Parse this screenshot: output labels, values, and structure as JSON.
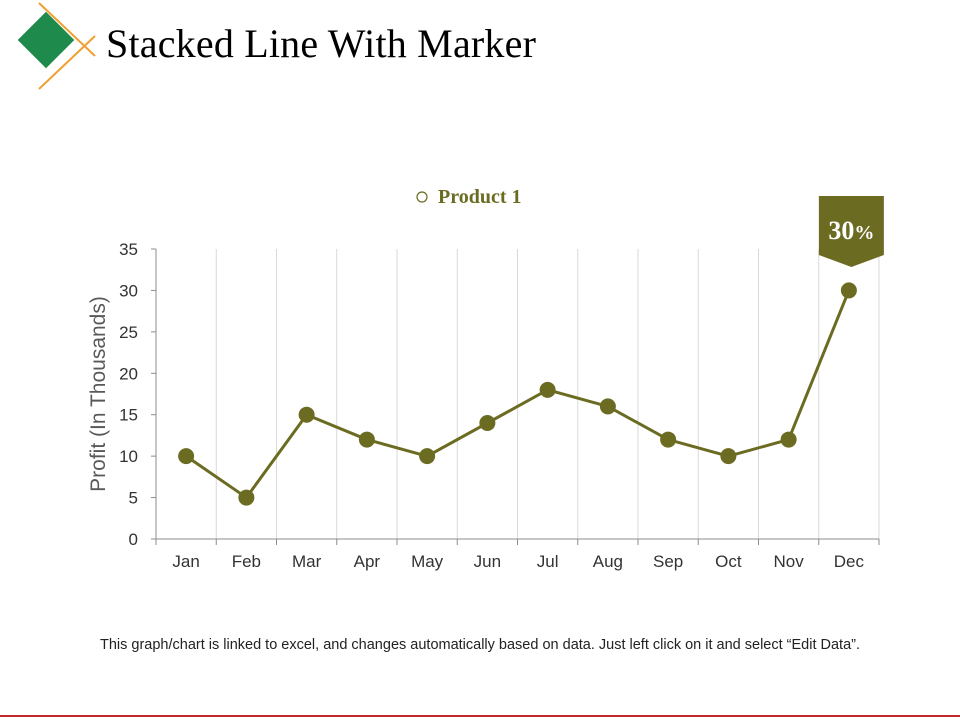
{
  "slide": {
    "title": "Stacked Line With Marker",
    "footnote": "This graph/chart is linked to excel, and changes automatically based on data. Just left click on it and select “Edit Data”.",
    "colors": {
      "logo_diamond": "#1e8a4c",
      "logo_line": "#f0a030",
      "footer_rule": "#c0282d"
    }
  },
  "chart_data": {
    "type": "line",
    "categories": [
      "Jan",
      "Feb",
      "Mar",
      "Apr",
      "May",
      "Jun",
      "Jul",
      "Aug",
      "Sep",
      "Oct",
      "Nov",
      "Dec"
    ],
    "series": [
      {
        "name": "Product 1",
        "values": [
          10,
          5,
          15,
          12,
          10,
          14,
          18,
          16,
          12,
          10,
          12,
          30
        ],
        "color": "#6b6b22"
      }
    ],
    "ylabel": "Profit (In Thousands)",
    "ylim": [
      0,
      35
    ],
    "yticks": [
      0,
      5,
      10,
      15,
      20,
      25,
      30,
      35
    ],
    "grid": "vertical",
    "legend_position": "top",
    "callout": {
      "label": "30",
      "unit": "%",
      "category": "Dec",
      "color": "#6b6b22"
    }
  }
}
